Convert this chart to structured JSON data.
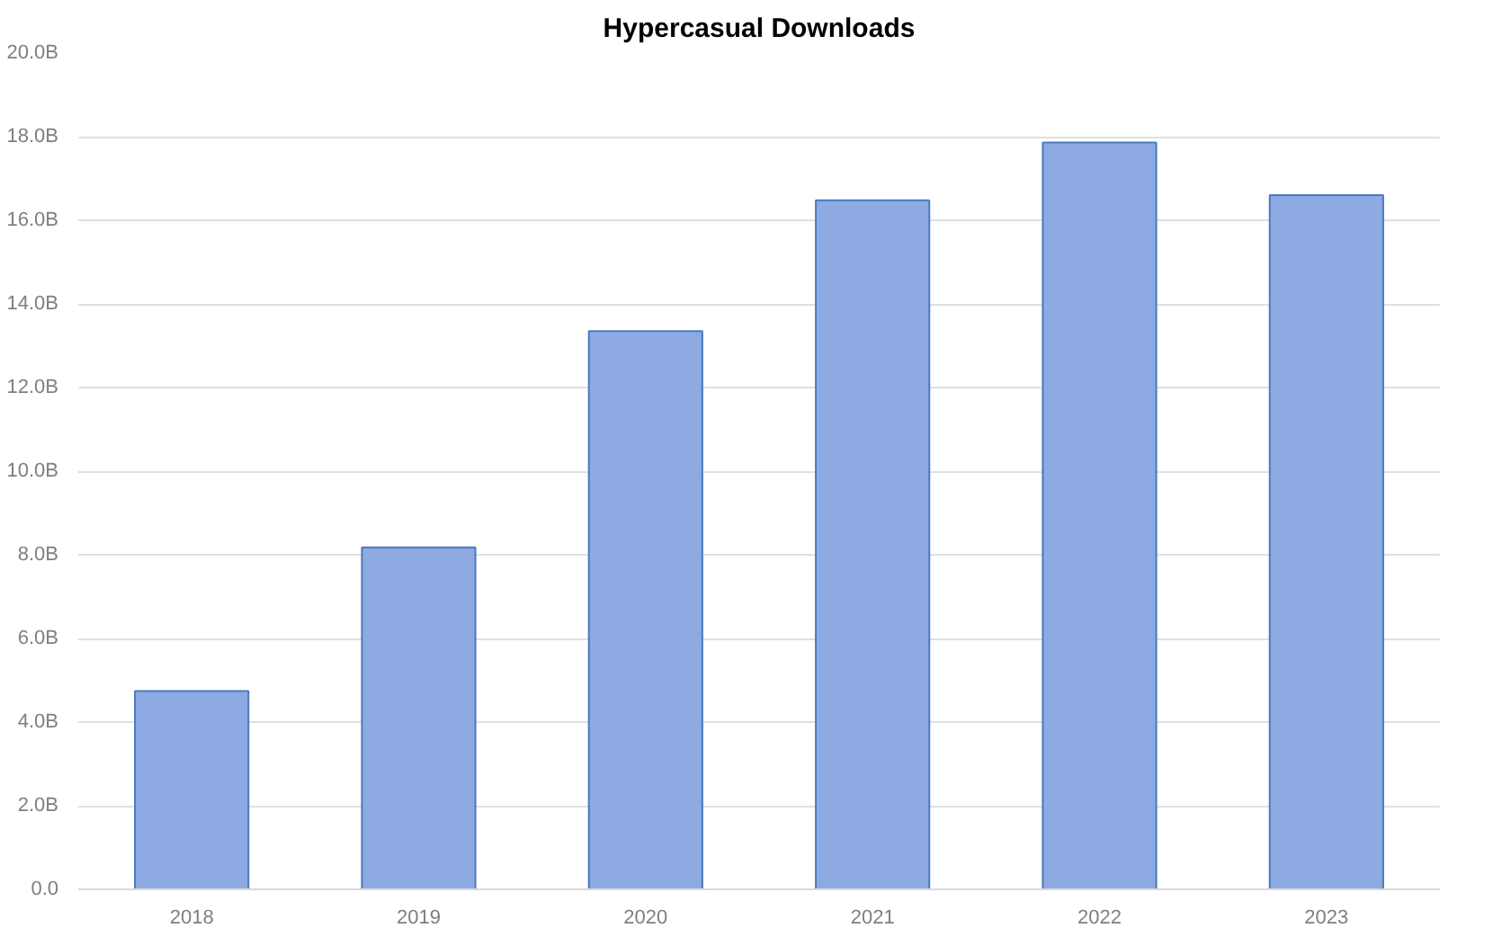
{
  "chart_data": {
    "type": "bar",
    "title": "Hypercasual Downloads",
    "categories": [
      "2018",
      "2019",
      "2020",
      "2021",
      "2022",
      "2023"
    ],
    "values": [
      4.74,
      8.18,
      13.35,
      16.48,
      17.86,
      16.6
    ],
    "color": "#8eaae2",
    "ylim": [
      0,
      20
    ],
    "yticks": [
      {
        "value": 0,
        "label": "0.0"
      },
      {
        "value": 2,
        "label": "2.0B"
      },
      {
        "value": 4,
        "label": "4.0B"
      },
      {
        "value": 6,
        "label": "6.0B"
      },
      {
        "value": 8,
        "label": "8.0B"
      },
      {
        "value": 10,
        "label": "10.0B"
      },
      {
        "value": 12,
        "label": "12.0B"
      },
      {
        "value": 14,
        "label": "14.0B"
      },
      {
        "value": 16,
        "label": "16.0B"
      },
      {
        "value": 18,
        "label": "18.0B"
      },
      {
        "value": 20,
        "label": "20.0B"
      }
    ],
    "grid": "y"
  }
}
